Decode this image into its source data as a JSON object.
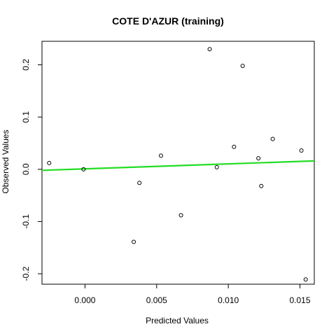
{
  "chart_data": {
    "type": "scatter",
    "title": "COTE D'AZUR (training)",
    "xlabel": "Predicted Values",
    "ylabel": "Observed Values",
    "xlim": [
      -0.003,
      0.016
    ],
    "ylim": [
      -0.22,
      0.245
    ],
    "xticks": [
      0.0,
      0.005,
      0.01,
      0.015
    ],
    "xtick_labels": [
      "0.000",
      "0.005",
      "0.010",
      "0.015"
    ],
    "yticks": [
      -0.2,
      -0.1,
      0.0,
      0.1,
      0.2
    ],
    "ytick_labels": [
      "-0.2",
      "-0.1",
      "0.0",
      "0.1",
      "0.2"
    ],
    "points": [
      {
        "x": -0.0025,
        "y": 0.012
      },
      {
        "x": -0.0001,
        "y": 0.0
      },
      {
        "x": 0.0034,
        "y": -0.139
      },
      {
        "x": 0.0038,
        "y": -0.026
      },
      {
        "x": 0.0053,
        "y": 0.026
      },
      {
        "x": 0.0067,
        "y": -0.088
      },
      {
        "x": 0.0087,
        "y": 0.23
      },
      {
        "x": 0.0092,
        "y": 0.004
      },
      {
        "x": 0.0104,
        "y": 0.043
      },
      {
        "x": 0.011,
        "y": 0.198
      },
      {
        "x": 0.0121,
        "y": 0.021
      },
      {
        "x": 0.0123,
        "y": -0.032
      },
      {
        "x": 0.0131,
        "y": 0.058
      },
      {
        "x": 0.0151,
        "y": 0.036
      },
      {
        "x": 0.0154,
        "y": -0.211
      }
    ],
    "fit_line": {
      "color": "#22dd22",
      "start": {
        "x": -0.003,
        "y": -0.002
      },
      "end": {
        "x": 0.016,
        "y": 0.016
      }
    },
    "grid": false,
    "legend": "none"
  }
}
